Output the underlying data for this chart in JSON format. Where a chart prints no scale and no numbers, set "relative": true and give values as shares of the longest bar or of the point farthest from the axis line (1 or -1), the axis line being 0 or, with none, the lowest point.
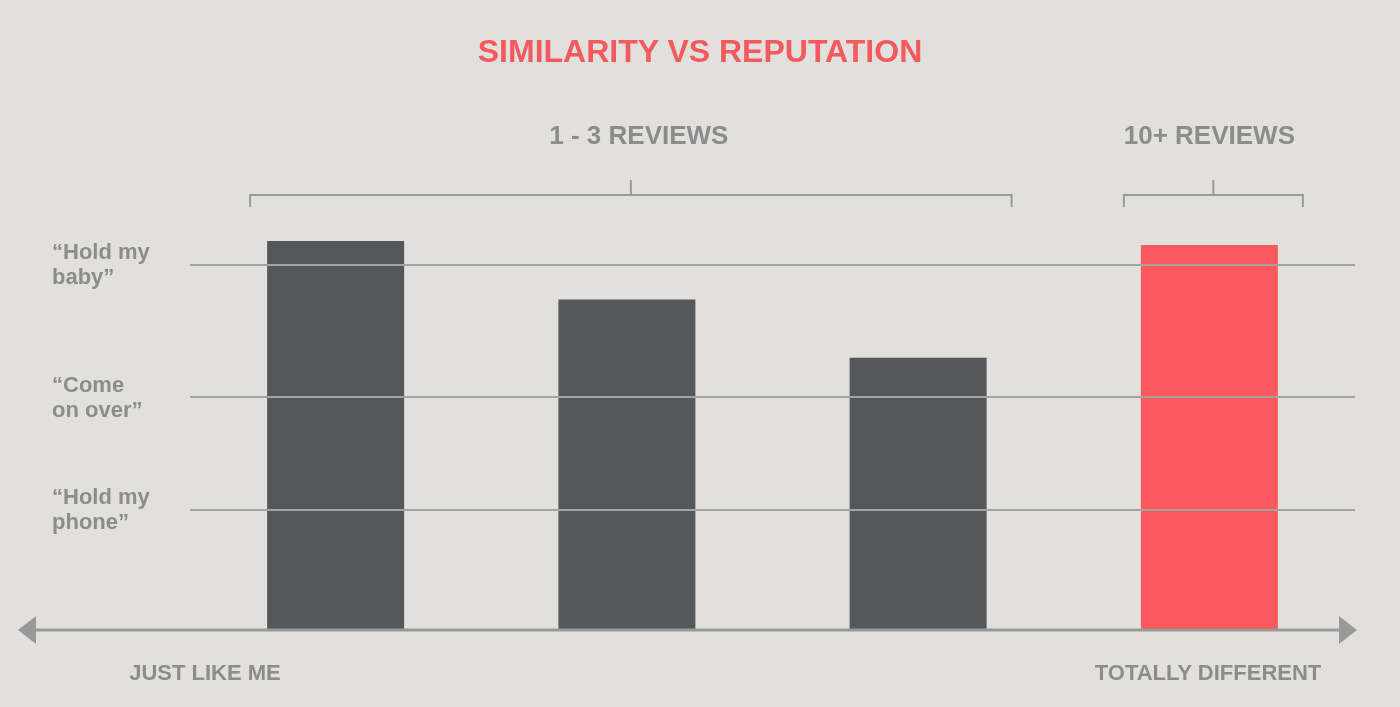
{
  "chart_data": {
    "type": "bar",
    "title": "SIMILARITY VS REPUTATION",
    "relative": true,
    "categories": [
      null,
      null,
      null,
      null
    ],
    "values": [
      1,
      0.85,
      0.7,
      0.99
    ],
    "colors": [
      "#55585b",
      "#55585b",
      "#55585b",
      "#fd5a5f"
    ],
    "ref_lines": [
      {
        "axis": "y",
        "value": 0.94,
        "label": "“Hold my baby”",
        "color": "#a3a3a3"
      },
      {
        "axis": "y",
        "value": 0.6,
        "label": "“Come on over”",
        "color": "#a3a3a3"
      },
      {
        "axis": "y",
        "value": 0.31,
        "label": "“Hold my phone”",
        "color": "#a3a3a3"
      }
    ],
    "annotations": [
      "1 - 3 REVIEWS",
      "10+ REVIEWS",
      "JUST LIKE ME",
      "TOTALLY DIFFERENT"
    ]
  }
}
